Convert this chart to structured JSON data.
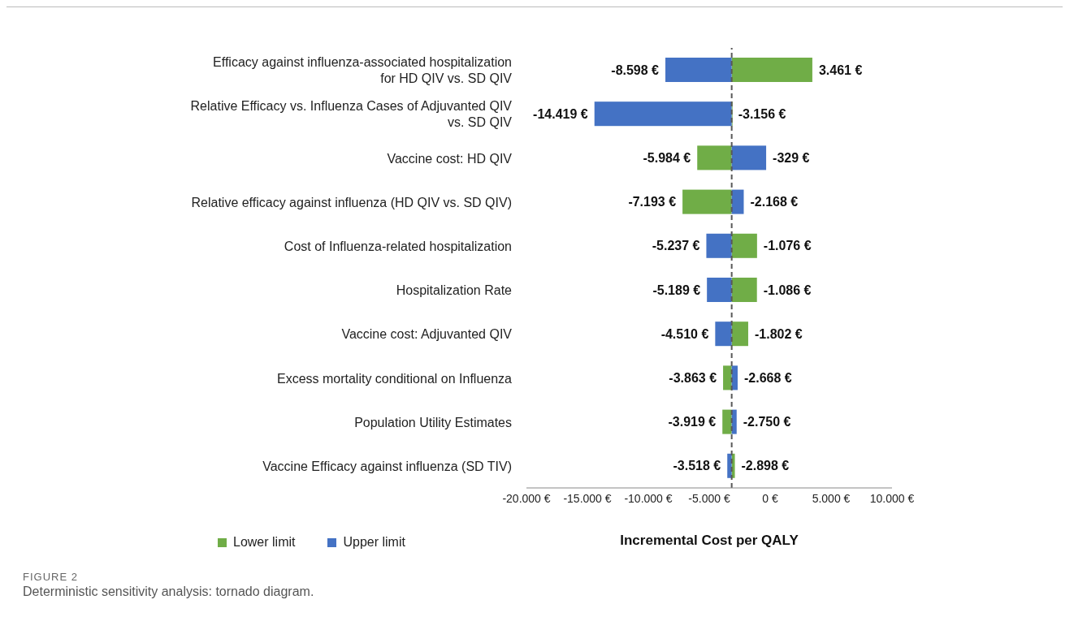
{
  "chart_data": {
    "type": "bar",
    "orientation": "horizontal",
    "xlabel": "Incremental Cost per QALY",
    "categories": [
      "Efficacy against influenza-associated hospitalization for HD QIV vs. SD QIV",
      "Relative Efficacy vs. Influenza Cases of Adjuvanted QIV vs. SD QIV",
      "Vaccine cost: HD QIV",
      "Relative efficacy against influenza (HD QIV vs. SD QIV)",
      "Cost of Influenza-related hospitalization",
      "Hospitalization Rate",
      "Vaccine cost: Adjuvanted QIV",
      "Excess mortality conditional on Influenza",
      "Population Utility Estimates",
      "Vaccine Efficacy against influenza (SD TIV)"
    ],
    "series": [
      {
        "name": "Lower limit",
        "color": "#70ad47",
        "base": [
          -3156,
          -3156,
          -3156,
          -3156,
          -3156,
          -3156,
          -3156,
          -3156,
          -3156,
          -3156
        ],
        "values": [
          6617,
          0,
          -2828,
          -4037,
          2080,
          2070,
          1354,
          -707,
          -763,
          258
        ],
        "value_labels": [
          "3.461 €",
          "-3.156 €",
          "-5.984 €",
          "-7.193 €",
          "-1.076 €",
          "-1.086 €",
          "-1.802 €",
          "-3.863 €",
          "-3.919 €",
          "-2.898 €"
        ]
      },
      {
        "name": "Upper limit",
        "color": "#4472c4",
        "base": [
          -3156,
          -3156,
          -3156,
          -3156,
          -3156,
          -3156,
          -3156,
          -3156,
          -3156,
          -3156
        ],
        "values": [
          -5442,
          -11263,
          2827,
          988,
          -2081,
          -2033,
          -1354,
          488,
          406,
          -362
        ],
        "value_labels": [
          "-8.598 €",
          "-14.419 €",
          "-329 €",
          "-2.168 €",
          "-5.237 €",
          "-5.189 €",
          "-4.510 €",
          "-2.668 €",
          "-2.750 €",
          "-3.518 €"
        ]
      }
    ],
    "xlim": [
      -20000,
      10000
    ],
    "xticks": [
      {
        "value": -20000,
        "label": "-20.000 €"
      },
      {
        "value": -15000,
        "label": "-15.000 €"
      },
      {
        "value": -10000,
        "label": "-10.000 €"
      },
      {
        "value": -5000,
        "label": "-5.000 €"
      },
      {
        "value": 0,
        "label": "0 €"
      },
      {
        "value": 5000,
        "label": "5.000 €"
      },
      {
        "value": 10000,
        "label": "10.000 €"
      }
    ],
    "ref_lines": [
      {
        "axis": "x",
        "value": -3156,
        "line_style": "dashed",
        "color": "#595959"
      }
    ],
    "grid": false,
    "legend": "bottom left",
    "annotations": [
      "FIGURE 2",
      "Deterministic sensitivity analysis: tornado diagram."
    ]
  }
}
